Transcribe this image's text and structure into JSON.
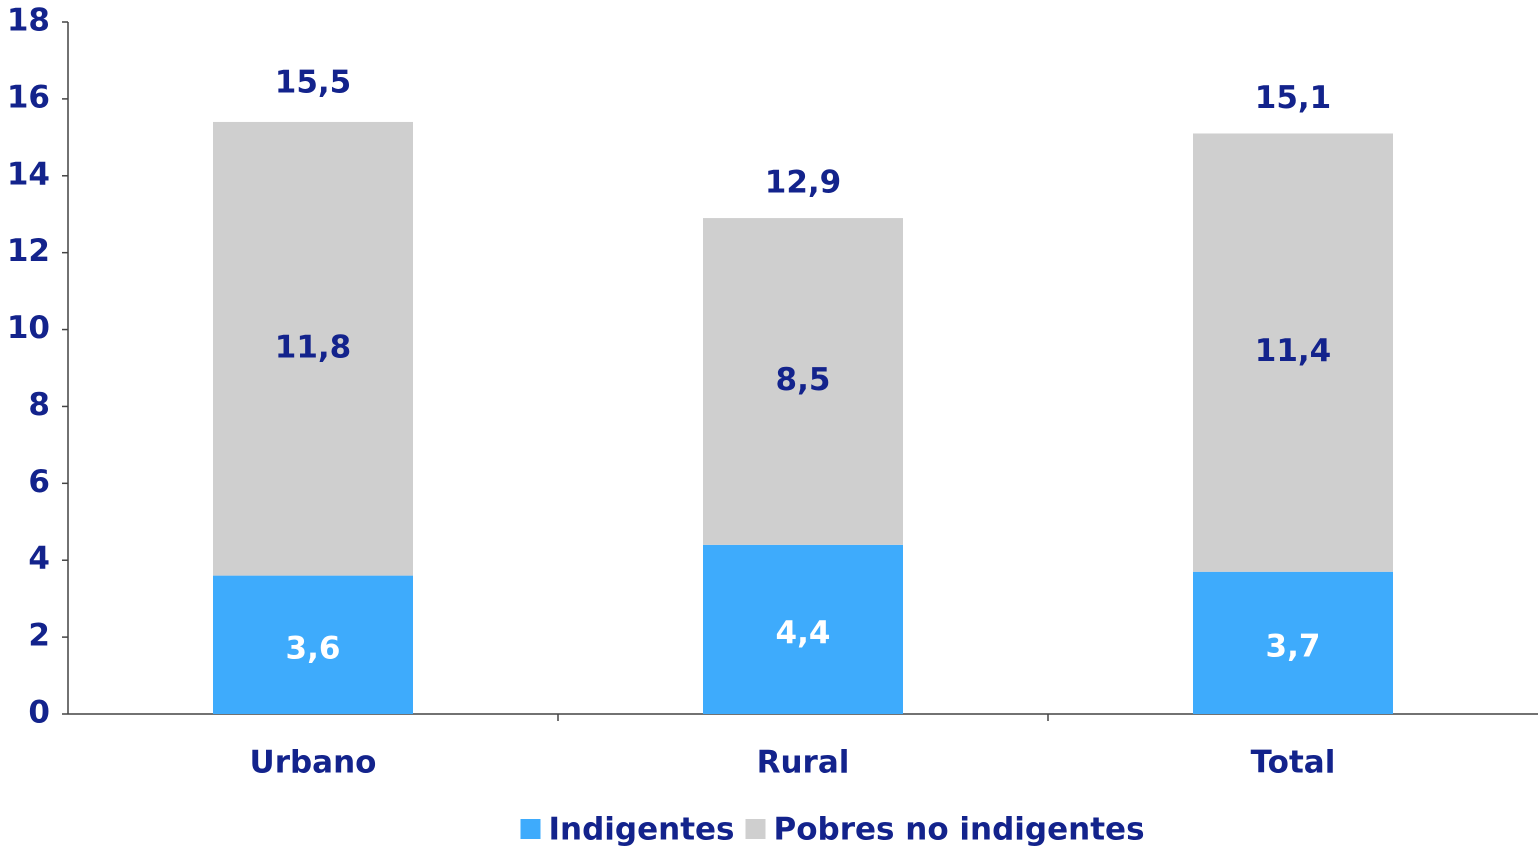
{
  "chart_data": {
    "type": "stacked_bar",
    "categories": [
      "Urbano",
      "Rural",
      "Total"
    ],
    "series": [
      {
        "name": "Indigentes",
        "color": "#3eabfc",
        "values": [
          3.6,
          4.4,
          3.7
        ],
        "value_labels": [
          "3,6",
          "4,4",
          "3,7"
        ]
      },
      {
        "name": "Pobres no indigentes",
        "color": "#cfcfcf",
        "values": [
          11.8,
          8.5,
          11.4
        ],
        "value_labels": [
          "11,8",
          "8,5",
          "11,4"
        ]
      }
    ],
    "totals": [
      15.5,
      12.9,
      15.1
    ],
    "total_labels": [
      "15,5",
      "12,9",
      "15,1"
    ],
    "ylim": [
      0,
      18
    ],
    "yticks": [
      0,
      2,
      4,
      6,
      8,
      10,
      12,
      14,
      16,
      18
    ],
    "legend": "bottom"
  }
}
